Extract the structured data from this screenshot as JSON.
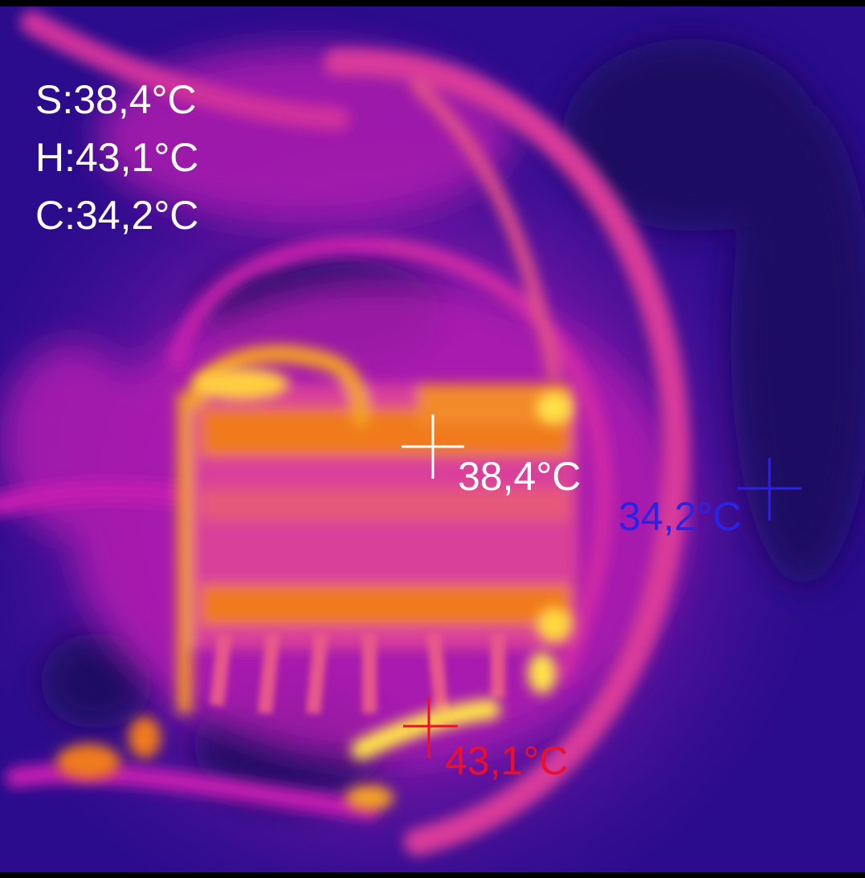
{
  "readout": {
    "spot": "S:38,4°C",
    "hot": "H:43,1°C",
    "cold": "C:34,2°C"
  },
  "markers": {
    "center": {
      "label": "38,4°C",
      "color": "#ffffff"
    },
    "cold": {
      "label": "34,2°C",
      "color": "#2a23e6"
    },
    "hot": {
      "label": "43,1°C",
      "color": "#e8102a"
    }
  },
  "palette": {
    "cold": "#2a0c8c",
    "mid": "#c21bb0",
    "warm": "#f07a1a",
    "hot": "#ffe24a"
  }
}
